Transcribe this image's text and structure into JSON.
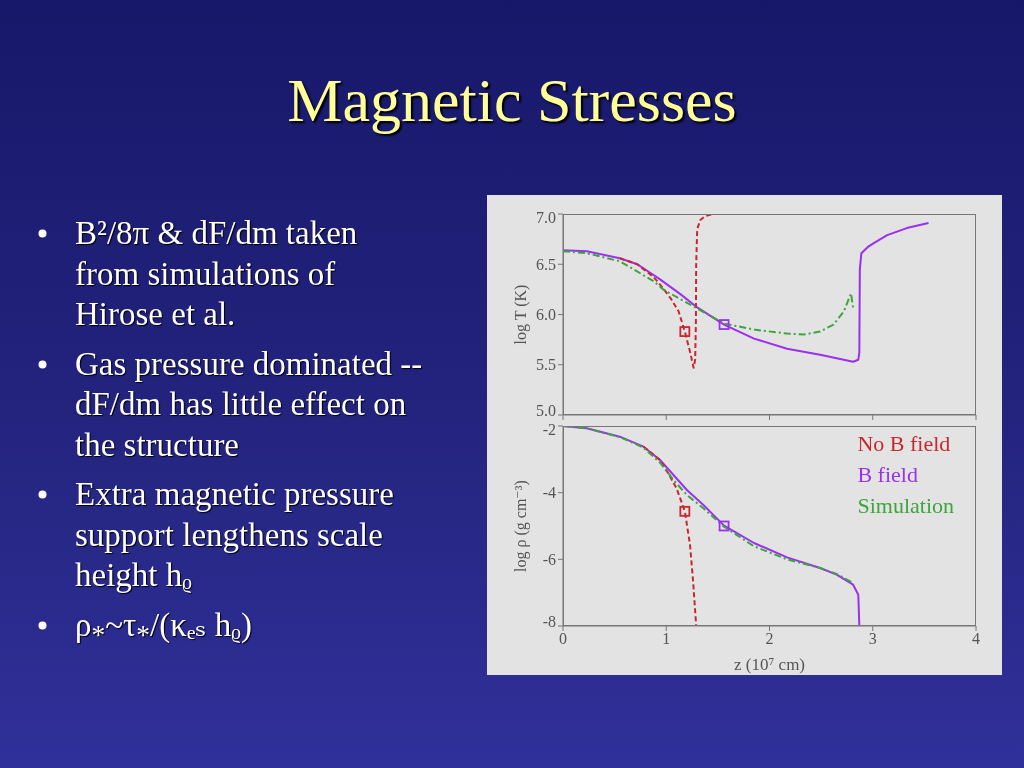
{
  "chart_data": [
    {
      "type": "line",
      "title": "Magnetic Stresses",
      "annotations": [
        "B²/8π & dF/dm taken from simulations of Hirose et al.",
        "Gas pressure dominated -- dF/dm has little effect on the structure",
        "Extra magnetic pressure support lengthens scale height hᵨ",
        "ρ$_{*}$~τ$_{*}$/(κₑₛ hᵨ)"
      ],
      "ylabel": "log T (K)",
      "xlim": [
        0,
        4
      ],
      "xticks": [
        0,
        1,
        2,
        3,
        4
      ],
      "ylim": [
        5,
        7
      ],
      "yticks": [
        {
          "value": 5,
          "label": "5.0"
        },
        5.5,
        {
          "value": 6,
          "label": "6.0"
        },
        6.5,
        {
          "value": 7,
          "label": "7.0"
        }
      ],
      "tick_labels": "y",
      "series": [
        {
          "color": "#c8282d",
          "line_style": "dashed",
          "x": [
            0.55,
            0.72,
            0.88,
            0.97,
            1.05,
            1.12,
            1.18,
            1.23,
            1.265,
            1.28,
            1.287,
            1.29,
            1.3,
            1.33,
            1.38,
            1.45
          ],
          "values": [
            6.56,
            6.5,
            6.37,
            6.26,
            6.15,
            6.03,
            5.83,
            5.63,
            5.47,
            5.55,
            5.9,
            6.5,
            6.85,
            6.94,
            6.98,
            7.0
          ]
        },
        {
          "color": "#9b30f0",
          "line_style": "solid",
          "x": [
            0,
            0.23,
            0.55,
            0.72,
            0.94,
            1.14,
            1.3,
            1.56,
            1.85,
            2.17,
            2.49,
            2.81,
            2.86,
            2.87,
            2.875,
            2.89,
            2.95,
            3.01,
            3.14,
            3.33,
            3.54
          ],
          "values": [
            6.64,
            6.63,
            6.56,
            6.5,
            6.35,
            6.2,
            6.07,
            5.9,
            5.76,
            5.66,
            5.6,
            5.53,
            5.55,
            5.62,
            6.45,
            6.61,
            6.67,
            6.71,
            6.79,
            6.86,
            6.91
          ]
        },
        {
          "color": "#3ca53c",
          "line_style": "dashdot",
          "x": [
            0,
            0.23,
            0.55,
            0.88,
            0.97,
            1.14,
            1.3,
            1.56,
            1.85,
            2.17,
            2.33,
            2.49,
            2.62,
            2.72,
            2.79,
            2.81
          ],
          "values": [
            6.63,
            6.61,
            6.53,
            6.33,
            6.25,
            6.15,
            6.06,
            5.91,
            5.85,
            5.81,
            5.8,
            5.83,
            5.9,
            6.03,
            6.21,
            6.06
          ]
        },
        {
          "type": "scatter",
          "marker": "square",
          "color": "#c8282d",
          "x": [
            1.18
          ],
          "values": [
            5.83
          ]
        },
        {
          "type": "scatter",
          "marker": "square",
          "color": "#9b30f0",
          "x": [
            1.56
          ],
          "values": [
            5.9
          ]
        }
      ]
    },
    {
      "type": "line",
      "xlabel": "z (10⁷ cm)",
      "ylabel": "log ρ (g cm⁻³)",
      "xlim": [
        0,
        4
      ],
      "xticks": [
        0,
        1,
        2,
        3,
        4
      ],
      "ylim": [
        -8,
        -2
      ],
      "yticks": [
        -8,
        -6,
        -4,
        -2
      ],
      "legend": "top right",
      "series": [
        {
          "name": "No B field",
          "color": "#c8282d",
          "line_style": "dashed",
          "x": [
            0.78,
            0.94,
            1.01,
            1.1,
            1.18,
            1.23,
            1.26,
            1.29
          ],
          "values": [
            -2.62,
            -3.02,
            -3.37,
            -3.87,
            -4.56,
            -5.56,
            -6.66,
            -8.0
          ]
        },
        {
          "name": "B field",
          "color": "#9b30f0",
          "line_style": "solid",
          "x": [
            0,
            0.23,
            0.55,
            0.78,
            0.94,
            1.07,
            1.2,
            1.36,
            1.56,
            1.85,
            2.17,
            2.49,
            2.65,
            2.81,
            2.86,
            2.87
          ],
          "values": [
            -2.0,
            -2.07,
            -2.32,
            -2.62,
            -3.02,
            -3.47,
            -3.92,
            -4.37,
            -4.99,
            -5.51,
            -5.94,
            -6.26,
            -6.46,
            -6.76,
            -7.06,
            -8.0
          ]
        },
        {
          "name": "Simulation",
          "color": "#3ca53c",
          "line_style": "dashdot",
          "x": [
            0,
            0.23,
            0.55,
            0.78,
            0.94,
            1.07,
            1.2,
            1.36,
            1.56,
            1.85,
            2.17,
            2.49,
            2.65,
            2.81
          ],
          "values": [
            -2.0,
            -2.07,
            -2.33,
            -2.65,
            -3.1,
            -3.62,
            -4.07,
            -4.47,
            -5.02,
            -5.61,
            -6.0,
            -6.26,
            -6.44,
            -6.71
          ]
        },
        {
          "type": "scatter",
          "marker": "square",
          "color": "#c8282d",
          "x": [
            1.18
          ],
          "values": [
            -4.56
          ]
        },
        {
          "type": "scatter",
          "marker": "square",
          "color": "#9b30f0",
          "x": [
            1.56
          ],
          "values": [
            -5.0
          ]
        }
      ]
    }
  ]
}
